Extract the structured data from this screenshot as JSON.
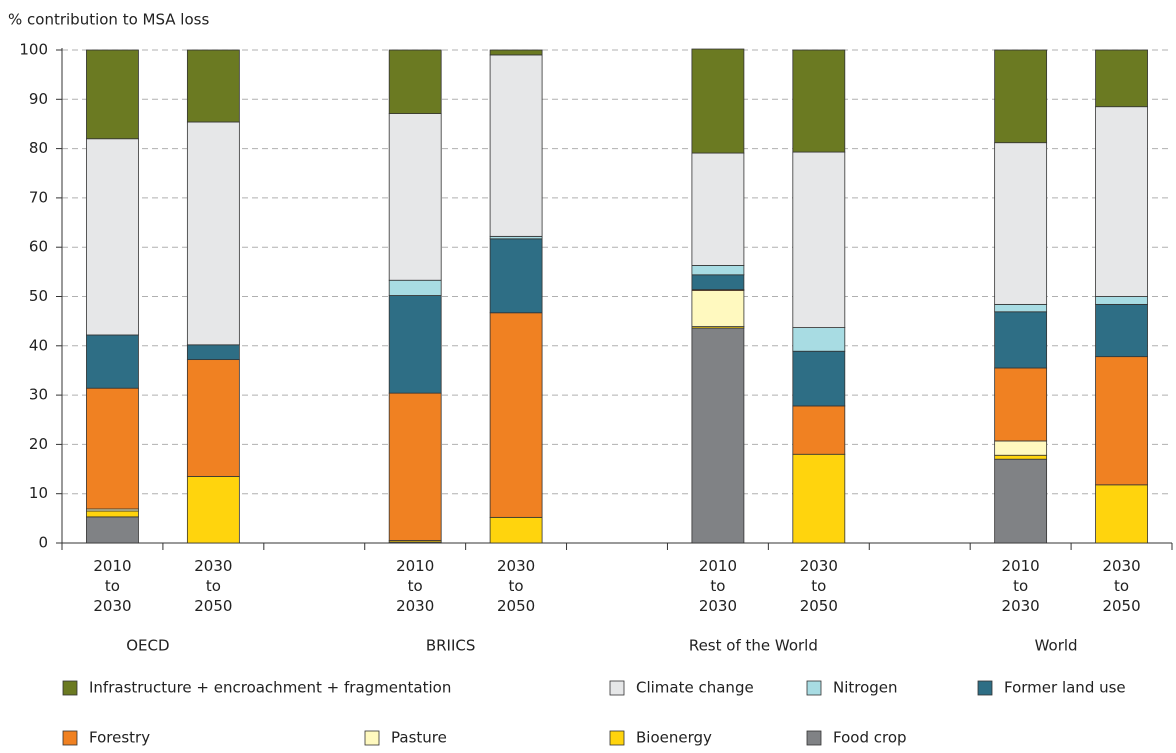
{
  "chart_data": {
    "type": "stacked_bar",
    "y_label": "% contribution to MSA loss",
    "categories": [
      "2010 to 2030",
      "2030 to 2050",
      null,
      "2010 to 2030",
      "2030 to 2050",
      null,
      "2010 to 2030",
      "2030 to 2050",
      null,
      "2010 to 2030",
      "2030 to 2050"
    ],
    "groups": [
      "OECD",
      "BRIICS",
      "Rest of the World",
      "World"
    ],
    "series": [
      {
        "name": "Infrastructure + encroachment + fragmentation",
        "color": "#6b7a22",
        "values": [
          18.0,
          14.6,
          null,
          12.9,
          1.0,
          null,
          21.1,
          20.7,
          null,
          18.8,
          11.5
        ]
      },
      {
        "name": "Climate change",
        "color": "#e6e7e8",
        "values": [
          39.8,
          45.2,
          null,
          33.8,
          36.8,
          null,
          22.8,
          35.6,
          null,
          32.8,
          38.5
        ]
      },
      {
        "name": "Nitrogen",
        "color": "#a8dce3",
        "values": [
          0,
          0,
          null,
          3.1,
          0.5,
          null,
          1.9,
          4.8,
          null,
          1.5,
          1.6
        ]
      },
      {
        "name": "Former land use",
        "color": "#2e6e85",
        "values": [
          10.8,
          3.0,
          null,
          19.8,
          15.0,
          null,
          3.0,
          11.1,
          null,
          11.4,
          10.6
        ]
      },
      {
        "name": "Forestry",
        "color": "#f08122",
        "values": [
          24.5,
          23.7,
          null,
          29.9,
          41.5,
          null,
          0.2,
          9.8,
          null,
          14.8,
          26.0
        ]
      },
      {
        "name": "Pasture",
        "color": "#fff9bf",
        "values": [
          0.4,
          0,
          null,
          0,
          0,
          null,
          7.3,
          0,
          null,
          2.9,
          0
        ]
      },
      {
        "name": "Bioenergy",
        "color": "#ffd40d",
        "values": [
          1.2,
          13.5,
          null,
          0.3,
          5.2,
          null,
          0.3,
          18.0,
          null,
          0.8,
          11.8
        ]
      },
      {
        "name": "Food crop",
        "color": "#808285",
        "values": [
          5.3,
          0,
          null,
          0.2,
          0,
          null,
          43.6,
          0,
          null,
          17.0,
          0
        ]
      }
    ],
    "ylim": [
      0,
      100
    ],
    "yticks": [
      0,
      10,
      20,
      30,
      40,
      50,
      60,
      70,
      80,
      90,
      100
    ],
    "grid": true
  }
}
